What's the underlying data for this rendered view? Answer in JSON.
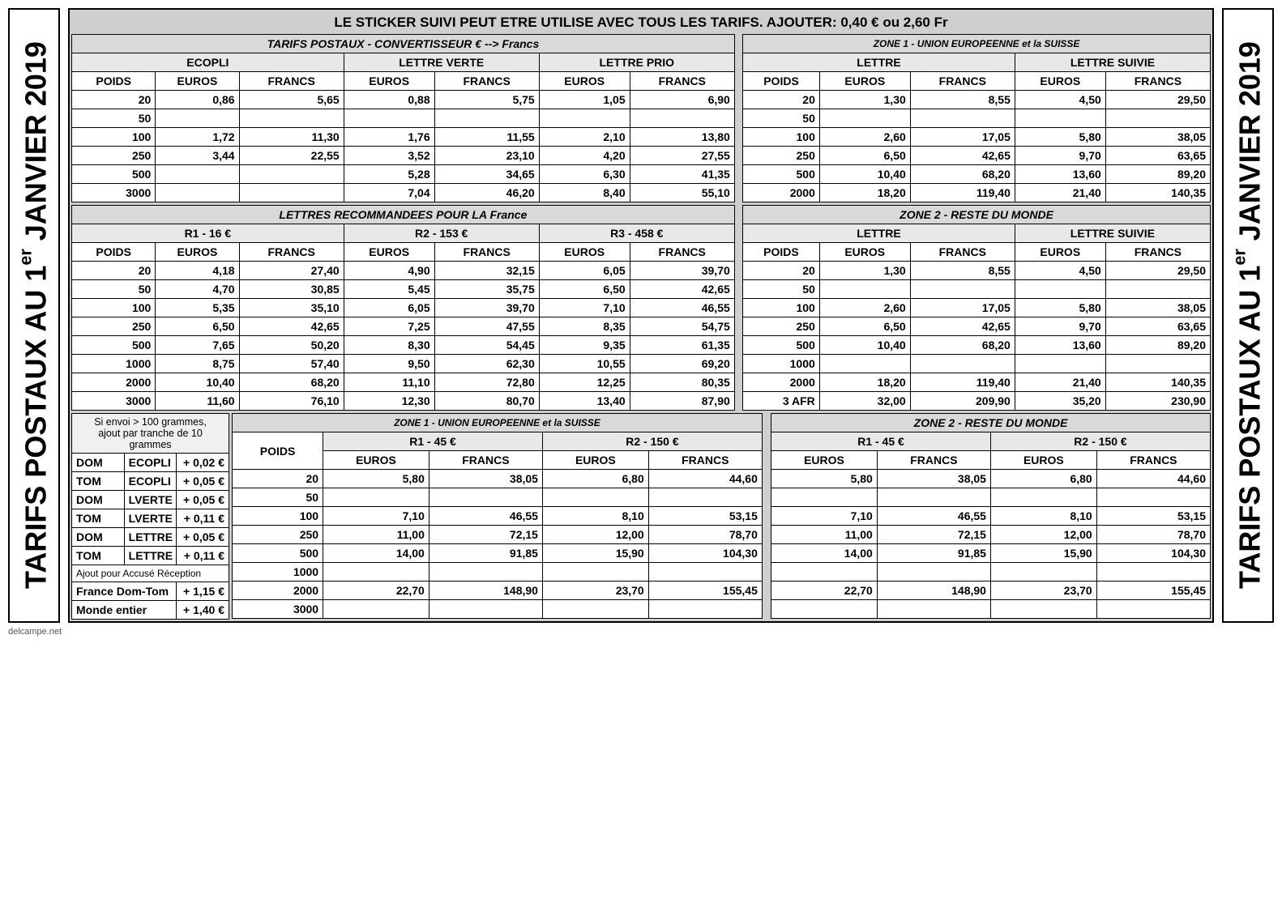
{
  "side_title_parts": [
    "TARIFS POSTAUX AU 1",
    "er",
    " JANVIER 2019"
  ],
  "topline": "LE STICKER SUIVI PEUT ETRE UTILISE AVEC TOUS LES TARIFS. AJOUTER: 0,40 € ou  2,60 Fr",
  "sec1": {
    "left_title": "TARIFS  POSTAUX - CONVERTISSEUR   €  --> Francs",
    "right_title": "ZONE 1 -  UNION  EUROPEENNE et la SUISSE",
    "cols": {
      "ecopli": "ECOPLI",
      "lverte": "LETTRE VERTE",
      "lprio": "LETTRE PRIO",
      "lettre": "LETTRE",
      "lsuivie": "LETTRE SUIVIE"
    },
    "sub": {
      "poids": "POIDS",
      "euros": "EUROS",
      "francs": "FRANCS"
    },
    "rows": [
      {
        "p": "20",
        "eE": "0,86",
        "eF": "5,65",
        "vE": "0,88",
        "vF": "5,75",
        "pE": "1,05",
        "pF": "6,90",
        "z1p": "20",
        "z1lE": "1,30",
        "z1lF": "8,55",
        "z1sE": "4,50",
        "z1sF": "29,50"
      },
      {
        "p": "50",
        "eE": "",
        "eF": "",
        "vE": "",
        "vF": "",
        "pE": "",
        "pF": "",
        "z1p": "50",
        "z1lE": "",
        "z1lF": "",
        "z1sE": "",
        "z1sF": ""
      },
      {
        "p": "100",
        "eE": "1,72",
        "eF": "11,30",
        "vE": "1,76",
        "vF": "11,55",
        "pE": "2,10",
        "pF": "13,80",
        "z1p": "100",
        "z1lE": "2,60",
        "z1lF": "17,05",
        "z1sE": "5,80",
        "z1sF": "38,05"
      },
      {
        "p": "250",
        "eE": "3,44",
        "eF": "22,55",
        "vE": "3,52",
        "vF": "23,10",
        "pE": "4,20",
        "pF": "27,55",
        "z1p": "250",
        "z1lE": "6,50",
        "z1lF": "42,65",
        "z1sE": "9,70",
        "z1sF": "63,65"
      },
      {
        "p": "500",
        "eE": "",
        "eF": "",
        "vE": "5,28",
        "vF": "34,65",
        "pE": "6,30",
        "pF": "41,35",
        "z1p": "500",
        "z1lE": "10,40",
        "z1lF": "68,20",
        "z1sE": "13,60",
        "z1sF": "89,20"
      },
      {
        "p": "3000",
        "eE": "",
        "eF": "",
        "vE": "7,04",
        "vF": "46,20",
        "pE": "8,40",
        "pF": "55,10",
        "z1p": "2000",
        "z1lE": "18,20",
        "z1lF": "119,40",
        "z1sE": "21,40",
        "z1sF": "140,35"
      }
    ]
  },
  "sec2": {
    "left_title": "LETTRES  RECOMMANDEES POUR LA France",
    "right_title": "ZONE 2 -  RESTE DU MONDE",
    "cols": {
      "r1": "R1 - 16 €",
      "r2": "R2 - 153 €",
      "r3": "R3 -  458 €",
      "lettre": "LETTRE",
      "lsuivie": "LETTRE SUIVIE"
    },
    "rows": [
      {
        "p": "20",
        "r1E": "4,18",
        "r1F": "27,40",
        "r2E": "4,90",
        "r2F": "32,15",
        "r3E": "6,05",
        "r3F": "39,70",
        "zp": "20",
        "lE": "1,30",
        "lF": "8,55",
        "sE": "4,50",
        "sF": "29,50"
      },
      {
        "p": "50",
        "r1E": "4,70",
        "r1F": "30,85",
        "r2E": "5,45",
        "r2F": "35,75",
        "r3E": "6,50",
        "r3F": "42,65",
        "zp": "50",
        "lE": "",
        "lF": "",
        "sE": "",
        "sF": ""
      },
      {
        "p": "100",
        "r1E": "5,35",
        "r1F": "35,10",
        "r2E": "6,05",
        "r2F": "39,70",
        "r3E": "7,10",
        "r3F": "46,55",
        "zp": "100",
        "lE": "2,60",
        "lF": "17,05",
        "sE": "5,80",
        "sF": "38,05"
      },
      {
        "p": "250",
        "r1E": "6,50",
        "r1F": "42,65",
        "r2E": "7,25",
        "r2F": "47,55",
        "r3E": "8,35",
        "r3F": "54,75",
        "zp": "250",
        "lE": "6,50",
        "lF": "42,65",
        "sE": "9,70",
        "sF": "63,65"
      },
      {
        "p": "500",
        "r1E": "7,65",
        "r1F": "50,20",
        "r2E": "8,30",
        "r2F": "54,45",
        "r3E": "9,35",
        "r3F": "61,35",
        "zp": "500",
        "lE": "10,40",
        "lF": "68,20",
        "sE": "13,60",
        "sF": "89,20"
      },
      {
        "p": "1000",
        "r1E": "8,75",
        "r1F": "57,40",
        "r2E": "9,50",
        "r2F": "62,30",
        "r3E": "10,55",
        "r3F": "69,20",
        "zp": "1000",
        "lE": "",
        "lF": "",
        "sE": "",
        "sF": ""
      },
      {
        "p": "2000",
        "r1E": "10,40",
        "r1F": "68,20",
        "r2E": "11,10",
        "r2F": "72,80",
        "r3E": "12,25",
        "r3F": "80,35",
        "zp": "2000",
        "lE": "18,20",
        "lF": "119,40",
        "sE": "21,40",
        "sF": "140,35"
      },
      {
        "p": "3000",
        "r1E": "11,60",
        "r1F": "76,10",
        "r2E": "12,30",
        "r2F": "80,70",
        "r3E": "13,40",
        "r3F": "87,90",
        "zp": "3 AFR",
        "lE": "32,00",
        "lF": "209,90",
        "sE": "35,20",
        "sF": "230,90"
      }
    ]
  },
  "sec3": {
    "note_lines": [
      "Si envoi > 100 grammes,",
      "ajout par tranche de 10",
      "grammes"
    ],
    "domtom": [
      {
        "a": "DOM",
        "b": "ECOPLI",
        "c": "+ 0,02 €"
      },
      {
        "a": "TOM",
        "b": "ECOPLI",
        "c": "+ 0,05 €"
      },
      {
        "a": "DOM",
        "b": "LVERTE",
        "c": "+ 0,05 €"
      },
      {
        "a": "TOM",
        "b": "LVERTE",
        "c": "+ 0,11 €"
      },
      {
        "a": "DOM",
        "b": "LETTRE",
        "c": "+ 0,05 €"
      },
      {
        "a": "TOM",
        "b": "LETTRE",
        "c": "+ 0,11 €"
      }
    ],
    "ar_title": "Ajout pour Accusé Réception",
    "ar_rows": [
      {
        "a": "France Dom-Tom",
        "b": "+ 1,15 €"
      },
      {
        "a": "Monde entier",
        "b": "+ 1,40 €"
      }
    ],
    "z1_title": "ZONE 1 -  UNION  EUROPEENNE et la SUISSE",
    "z2_title": "ZONE 2 -  RESTE DU MONDE",
    "cols": {
      "r1": "R1 - 45 €",
      "r2": "R2 - 150 €"
    },
    "rows": [
      {
        "p": "20",
        "z1r1E": "5,80",
        "z1r1F": "38,05",
        "z1r2E": "6,80",
        "z1r2F": "44,60",
        "z2r1E": "5,80",
        "z2r1F": "38,05",
        "z2r2E": "6,80",
        "z2r2F": "44,60"
      },
      {
        "p": "50",
        "z1r1E": "",
        "z1r1F": "",
        "z1r2E": "",
        "z1r2F": "",
        "z2r1E": "",
        "z2r1F": "",
        "z2r2E": "",
        "z2r2F": ""
      },
      {
        "p": "100",
        "z1r1E": "7,10",
        "z1r1F": "46,55",
        "z1r2E": "8,10",
        "z1r2F": "53,15",
        "z2r1E": "7,10",
        "z2r1F": "46,55",
        "z2r2E": "8,10",
        "z2r2F": "53,15"
      },
      {
        "p": "250",
        "z1r1E": "11,00",
        "z1r1F": "72,15",
        "z1r2E": "12,00",
        "z1r2F": "78,70",
        "z2r1E": "11,00",
        "z2r1F": "72,15",
        "z2r2E": "12,00",
        "z2r2F": "78,70"
      },
      {
        "p": "500",
        "z1r1E": "14,00",
        "z1r1F": "91,85",
        "z1r2E": "15,90",
        "z1r2F": "104,30",
        "z2r1E": "14,00",
        "z2r1F": "91,85",
        "z2r2E": "15,90",
        "z2r2F": "104,30"
      },
      {
        "p": "1000",
        "z1r1E": "",
        "z1r1F": "",
        "z1r2E": "",
        "z1r2F": "",
        "z2r1E": "",
        "z2r1F": "",
        "z2r2E": "",
        "z2r2F": ""
      },
      {
        "p": "2000",
        "z1r1E": "22,70",
        "z1r1F": "148,90",
        "z1r2E": "23,70",
        "z1r2F": "155,45",
        "z2r1E": "22,70",
        "z2r1F": "148,90",
        "z2r2E": "23,70",
        "z2r2F": "155,45"
      },
      {
        "p": "3000",
        "z1r1E": "",
        "z1r1F": "",
        "z1r2E": "",
        "z1r2F": "",
        "z2r1E": "",
        "z2r1F": "",
        "z2r2E": "",
        "z2r2F": ""
      }
    ]
  },
  "footer": "delcampe.net"
}
